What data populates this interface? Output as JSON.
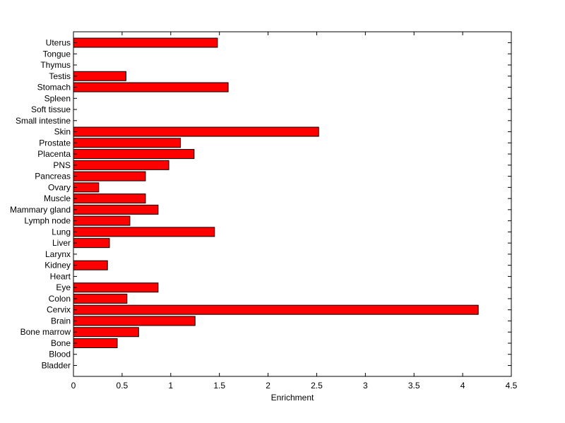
{
  "chart_data": {
    "type": "bar",
    "orientation": "horizontal",
    "title": "",
    "xlabel": "Enrichment",
    "ylabel": "",
    "xlim": [
      0,
      4.5
    ],
    "xticks": [
      "0",
      "0.5",
      "1",
      "1.5",
      "2",
      "2.5",
      "3",
      "3.5",
      "4",
      "4.5"
    ],
    "grid": false,
    "bar_color": "#ff0000",
    "edge_color": "#000000",
    "categories": [
      "Bladder",
      "Blood",
      "Bone",
      "Bone marrow",
      "Brain",
      "Cervix",
      "Colon",
      "Eye",
      "Heart",
      "Kidney",
      "Larynx",
      "Liver",
      "Lung",
      "Lymph node",
      "Mammary gland",
      "Muscle",
      "Ovary",
      "Pancreas",
      "PNS",
      "Placenta",
      "Prostate",
      "Skin",
      "Small intestine",
      "Soft tissue",
      "Spleen",
      "Stomach",
      "Testis",
      "Thymus",
      "Tongue",
      "Uterus"
    ],
    "values": [
      0,
      0,
      0.45,
      0.67,
      1.25,
      4.16,
      0.55,
      0.87,
      0,
      0.35,
      0,
      0.37,
      1.45,
      0.58,
      0.87,
      0.74,
      0.26,
      0.74,
      0.98,
      1.24,
      1.1,
      2.52,
      0,
      0,
      0,
      1.59,
      0.54,
      0,
      0,
      1.48
    ]
  }
}
